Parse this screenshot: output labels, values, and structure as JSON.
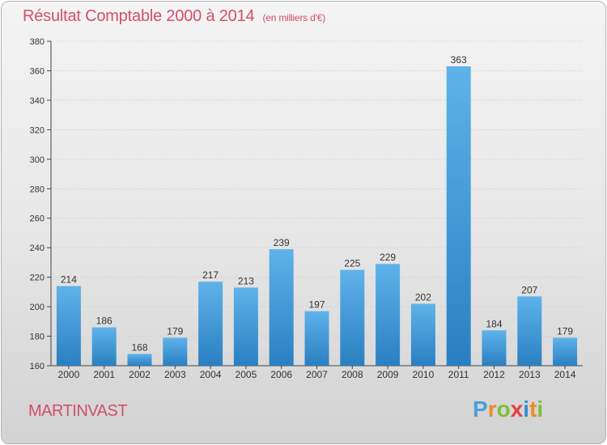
{
  "title": "Résultat Comptable 2000 à 2014",
  "unit_note": "(en milliers d'€)",
  "commune": "MARTINVAST",
  "logo": {
    "letters": [
      "P",
      "r",
      "o",
      "x",
      "i",
      "t",
      "i"
    ],
    "colors": [
      "#4aa0d8",
      "#f08a2a",
      "#7cbf3c",
      "#e83c3c",
      "#2f8fd0",
      "#f08a2a",
      "#7cbf3c"
    ]
  },
  "colors": {
    "bar_top": "#5fb3ea",
    "bar_bottom": "#2a7fc1",
    "accent": "#d24f6a"
  },
  "chart_data": {
    "type": "bar",
    "title": "Résultat Comptable 2000 à 2014",
    "categories": [
      "2000",
      "2001",
      "2002",
      "2003",
      "2004",
      "2005",
      "2006",
      "2007",
      "2008",
      "2009",
      "2010",
      "2011",
      "2012",
      "2013",
      "2014"
    ],
    "values": [
      214,
      186,
      168,
      179,
      217,
      213,
      239,
      197,
      225,
      229,
      202,
      363,
      184,
      207,
      179
    ],
    "ylim": [
      160,
      380
    ],
    "yticks": [
      160,
      180,
      200,
      220,
      240,
      260,
      280,
      300,
      320,
      340,
      360,
      380
    ],
    "grid": true,
    "xlabel": "",
    "ylabel": ""
  }
}
